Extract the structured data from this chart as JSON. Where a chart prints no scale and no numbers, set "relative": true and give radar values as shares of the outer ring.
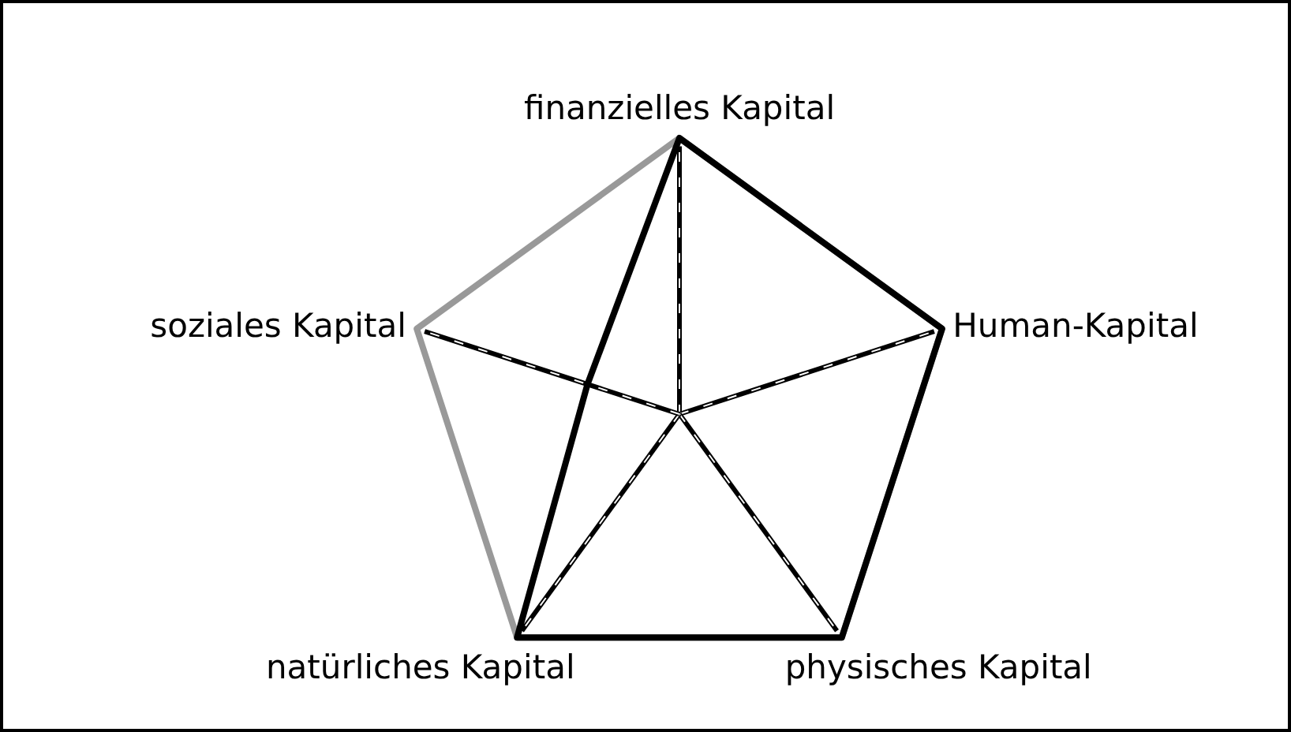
{
  "chart_data": {
    "type": "radar",
    "relative": true,
    "categories": [
      "finanzielles Kapital",
      "Human-Kapital",
      "physisches Kapital",
      "natürliches Kapital",
      "soziales Kapital"
    ],
    "series": [
      {
        "color": "#000000",
        "values": [
          1,
          1,
          1,
          1,
          0.35
        ]
      }
    ],
    "grid": true
  }
}
